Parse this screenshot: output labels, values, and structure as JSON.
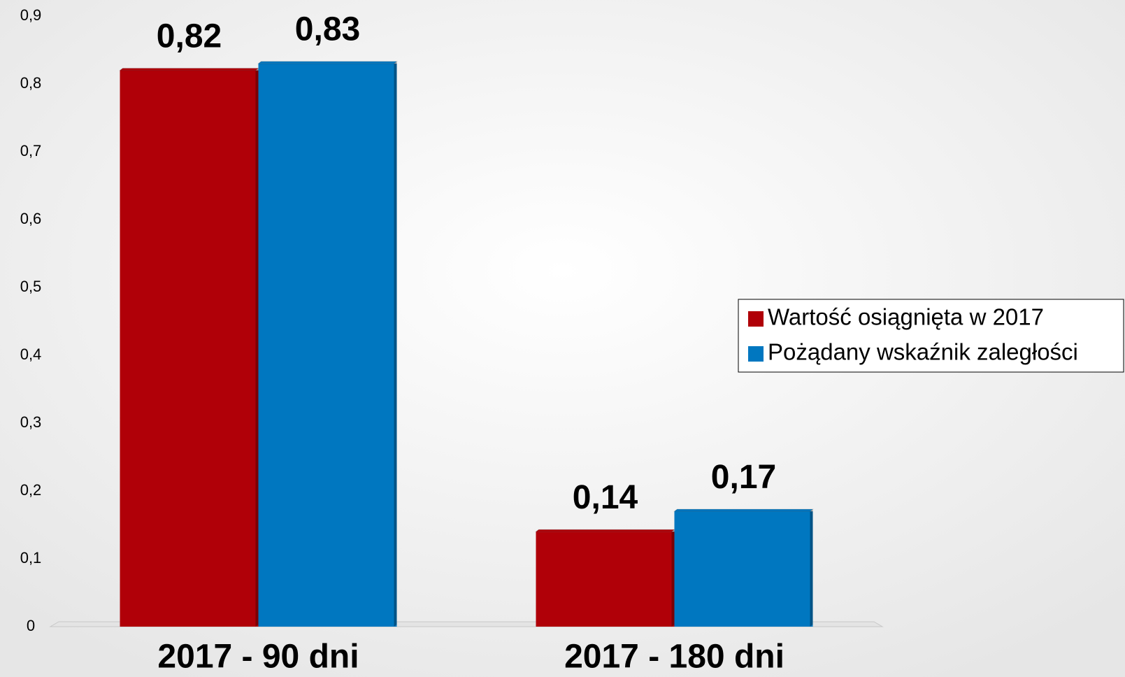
{
  "chart_data": {
    "type": "bar",
    "categories": [
      "2017 - 90 dni",
      "2017 - 180 dni"
    ],
    "series": [
      {
        "name": "Wartość osiągnięta w 2017",
        "color": "#b00008",
        "values": [
          0.82,
          0.14
        ],
        "value_labels": [
          "0,82",
          "0,14"
        ]
      },
      {
        "name": "Pożądany wskaźnik zaległości",
        "color": "#0077c0",
        "values": [
          0.83,
          0.17
        ],
        "value_labels": [
          "0,83",
          "0,17"
        ]
      }
    ],
    "ylim": [
      0,
      0.9
    ],
    "yticks": [
      0,
      {
        "value": 0.1,
        "label": "0,1"
      },
      {
        "value": 0.2,
        "label": "0,2"
      },
      {
        "value": 0.3,
        "label": "0,3"
      },
      {
        "value": 0.4,
        "label": "0,4"
      },
      {
        "value": 0.5,
        "label": "0,5"
      },
      {
        "value": 0.6,
        "label": "0,6"
      },
      {
        "value": 0.7,
        "label": "0,7"
      },
      {
        "value": 0.8,
        "label": "0,8"
      },
      {
        "value": 0.9,
        "label": "0,9"
      }
    ],
    "legend": "right"
  }
}
